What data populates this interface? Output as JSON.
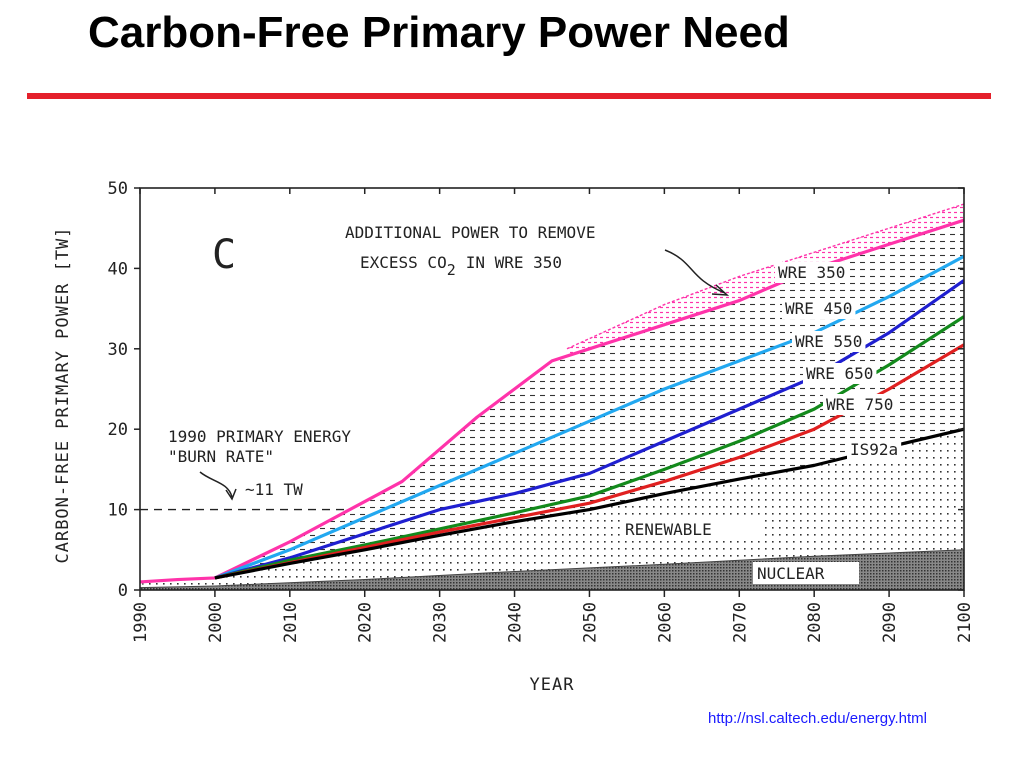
{
  "slide": {
    "title": "Carbon-Free Primary Power Need",
    "source_url": "http://nsl.caltech.edu/energy.html",
    "rule_color": "#e4202b"
  },
  "chart_data": {
    "type": "line",
    "panel_label": "C",
    "xlabel": "YEAR",
    "ylabel": "CARBON-FREE PRIMARY POWER [TW]",
    "xlim": [
      1990,
      2100
    ],
    "ylim": [
      0,
      50
    ],
    "xticks": [
      1990,
      2000,
      2010,
      2020,
      2030,
      2040,
      2050,
      2060,
      2070,
      2080,
      2090,
      2100
    ],
    "yticks": [
      0,
      10,
      20,
      30,
      40,
      50
    ],
    "grid": false,
    "series": [
      {
        "name": "WRE 350",
        "color": "#ff33aa",
        "x": [
          1990,
          1995,
          2000,
          2010,
          2020,
          2025,
          2030,
          2035,
          2040,
          2045,
          2050,
          2060,
          2070,
          2075,
          2080,
          2090,
          2100
        ],
        "y": [
          1,
          1.3,
          1.5,
          6,
          11,
          13.5,
          17.5,
          21.5,
          25,
          28.5,
          30,
          33,
          36,
          38,
          40,
          43,
          46
        ]
      },
      {
        "name": "WRE 450",
        "color": "#22a8f0",
        "x": [
          2000,
          2010,
          2020,
          2030,
          2040,
          2050,
          2060,
          2070,
          2080,
          2090,
          2100
        ],
        "y": [
          1.5,
          5,
          9,
          13,
          17,
          21,
          25,
          28.5,
          32,
          36.5,
          41.5
        ]
      },
      {
        "name": "WRE 550",
        "color": "#1f1fd0",
        "x": [
          2000,
          2010,
          2020,
          2030,
          2040,
          2050,
          2060,
          2070,
          2080,
          2090,
          2100
        ],
        "y": [
          1.5,
          4,
          7,
          10,
          12,
          14.5,
          18.5,
          22.5,
          26.5,
          32,
          38.5
        ]
      },
      {
        "name": "WRE 650",
        "color": "#138a1c",
        "x": [
          2000,
          2010,
          2020,
          2030,
          2040,
          2050,
          2060,
          2070,
          2080,
          2090,
          2100
        ],
        "y": [
          1.5,
          3.7,
          5.6,
          7.6,
          9.6,
          11.7,
          15,
          18.5,
          22.5,
          28,
          34
        ]
      },
      {
        "name": "WRE 750",
        "color": "#e02020",
        "x": [
          2000,
          2010,
          2020,
          2030,
          2040,
          2050,
          2060,
          2070,
          2080,
          2090,
          2100
        ],
        "y": [
          1.5,
          3.4,
          5.3,
          7.2,
          9,
          10.8,
          13.5,
          16.5,
          20,
          25,
          30.5
        ]
      },
      {
        "name": "IS92a",
        "color": "#000000",
        "x": [
          2000,
          2010,
          2020,
          2030,
          2040,
          2050,
          2060,
          2070,
          2080,
          2090,
          2100
        ],
        "y": [
          1.5,
          3.3,
          5,
          6.8,
          8.5,
          10,
          12,
          13.8,
          15.5,
          17.8,
          20
        ]
      }
    ],
    "regions": {
      "additional_power_upper": {
        "x": [
          2047,
          2060,
          2070,
          2080,
          2090,
          2100
        ],
        "y": [
          30,
          35.5,
          39,
          42,
          45,
          48
        ]
      },
      "nuclear_top": {
        "x": [
          1990,
          2000,
          2020,
          2040,
          2060,
          2080,
          2100
        ],
        "y": [
          0.3,
          0.5,
          1.3,
          2.3,
          3.2,
          4.2,
          5
        ]
      }
    },
    "reference_line": {
      "value": 10,
      "x_end": 2018,
      "label": "~11 TW"
    },
    "annotations": {
      "additional_power": "ADDITIONAL POWER TO REMOVE",
      "excess_co2_prefix": "EXCESS CO",
      "excess_co2_sub": "2",
      "excess_co2_suffix": "IN WRE 350",
      "burn_rate_line1": "1990 PRIMARY ENERGY",
      "burn_rate_line2": "\"BURN RATE\"",
      "renewable": "RENEWABLE",
      "nuclear": "NUCLEAR"
    }
  }
}
